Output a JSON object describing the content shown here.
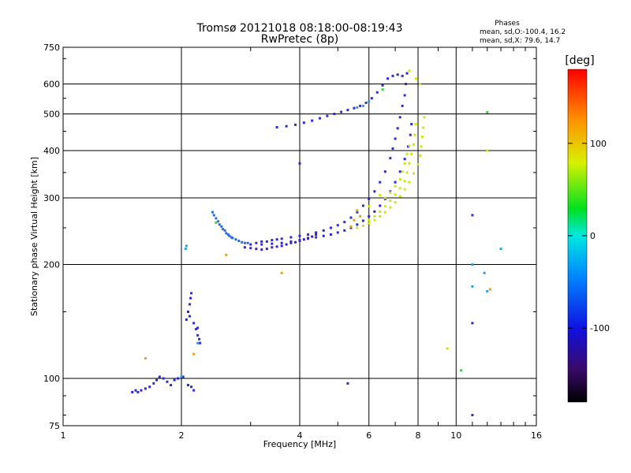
{
  "chart_data": {
    "type": "scatter",
    "title": "Tromsø 20121018 08:18:00-08:19:43",
    "subtitle": "RwPretec (8p)",
    "stats": {
      "heading": "Phases",
      "line_o": "mean, sd,O:-100.4, 16.2",
      "line_x": "mean, sd,X: 79.6, 14.7"
    },
    "xlabel": "Frequency [MHz]",
    "ylabel": "Stationary phase Virtual Height [km]",
    "x_scale": "log",
    "y_scale": "log",
    "xlim": [
      1,
      16
    ],
    "ylim": [
      75,
      750
    ],
    "x_ticks": [
      1,
      2,
      4,
      6,
      8,
      10,
      16
    ],
    "y_ticks": [
      75,
      100,
      200,
      300,
      400,
      500,
      600,
      750
    ],
    "x_grid": [
      2,
      4,
      6,
      8,
      10
    ],
    "y_grid": [
      100,
      200,
      300,
      400,
      500,
      600
    ],
    "grid": true,
    "colorbar": {
      "label": "[deg]",
      "range": [
        -180,
        180
      ],
      "ticks": [
        100,
        0,
        -100
      ]
    },
    "series": [
      {
        "name": "",
        "color": "#2a2ad8",
        "phase": -100,
        "points": [
          [
            1.5,
            92
          ],
          [
            1.53,
            93
          ],
          [
            1.55,
            92
          ],
          [
            1.58,
            93
          ],
          [
            1.62,
            94
          ],
          [
            1.66,
            95
          ],
          [
            1.7,
            97
          ],
          [
            1.73,
            99
          ],
          [
            1.76,
            101
          ],
          [
            1.8,
            100
          ],
          [
            1.84,
            98
          ],
          [
            1.88,
            96
          ],
          [
            1.92,
            99
          ],
          [
            1.96,
            100
          ],
          [
            2.02,
            101
          ],
          [
            2.08,
            96
          ],
          [
            2.12,
            95
          ],
          [
            2.15,
            93
          ],
          [
            2.06,
            143
          ],
          [
            2.08,
            150
          ],
          [
            2.1,
            157
          ],
          [
            2.11,
            163
          ],
          [
            2.12,
            168
          ],
          [
            2.1,
            146
          ],
          [
            2.15,
            140
          ],
          [
            2.18,
            135
          ],
          [
            2.2,
            130
          ],
          [
            2.22,
            127
          ],
          [
            2.23,
            124
          ],
          [
            2.2,
            136
          ],
          [
            3.0,
            226
          ],
          [
            3.1,
            228
          ],
          [
            3.2,
            230
          ],
          [
            3.3,
            230
          ],
          [
            3.4,
            232
          ],
          [
            3.5,
            233
          ],
          [
            3.6,
            234
          ],
          [
            3.8,
            236
          ],
          [
            4.0,
            238
          ],
          [
            4.2,
            240
          ],
          [
            4.4,
            243
          ],
          [
            4.6,
            246
          ],
          [
            4.8,
            250
          ],
          [
            5.0,
            254
          ],
          [
            5.2,
            259
          ],
          [
            5.4,
            266
          ],
          [
            5.6,
            275
          ],
          [
            5.8,
            286
          ],
          [
            6.0,
            298
          ],
          [
            6.2,
            312
          ],
          [
            6.4,
            330
          ],
          [
            6.6,
            352
          ],
          [
            6.8,
            382
          ],
          [
            6.9,
            405
          ],
          [
            7.0,
            430
          ],
          [
            7.1,
            458
          ],
          [
            7.2,
            490
          ],
          [
            7.3,
            525
          ],
          [
            7.4,
            560
          ],
          [
            7.45,
            600
          ],
          [
            7.5,
            640
          ],
          [
            3.2,
            226
          ],
          [
            3.4,
            227
          ],
          [
            3.6,
            228
          ],
          [
            3.8,
            230
          ],
          [
            4.0,
            232
          ],
          [
            4.2,
            234
          ],
          [
            4.4,
            236
          ],
          [
            4.6,
            238
          ],
          [
            4.8,
            240
          ],
          [
            5.0,
            243
          ],
          [
            5.2,
            246
          ],
          [
            5.4,
            250
          ],
          [
            5.6,
            255
          ],
          [
            5.8,
            261
          ],
          [
            6.0,
            268
          ],
          [
            6.2,
            276
          ],
          [
            6.4,
            286
          ],
          [
            6.6,
            298
          ],
          [
            6.8,
            312
          ],
          [
            7.0,
            330
          ],
          [
            7.2,
            352
          ],
          [
            7.4,
            380
          ],
          [
            7.55,
            410
          ],
          [
            7.65,
            440
          ],
          [
            7.7,
            470
          ],
          [
            3.5,
            461
          ],
          [
            3.7,
            464
          ],
          [
            3.9,
            468
          ],
          [
            4.1,
            474
          ],
          [
            4.3,
            480
          ],
          [
            4.5,
            487
          ],
          [
            4.7,
            494
          ],
          [
            4.9,
            500
          ],
          [
            5.1,
            506
          ],
          [
            5.3,
            512
          ],
          [
            5.5,
            518
          ],
          [
            5.7,
            525
          ],
          [
            5.9,
            535
          ],
          [
            6.1,
            550
          ],
          [
            6.3,
            570
          ],
          [
            6.5,
            595
          ],
          [
            6.7,
            620
          ],
          [
            6.9,
            630
          ],
          [
            7.1,
            635
          ],
          [
            7.3,
            630
          ],
          [
            4.0,
            370
          ],
          [
            5.3,
            97
          ],
          [
            11.0,
            140
          ],
          [
            11.0,
            80
          ],
          [
            11.0,
            270
          ]
        ]
      },
      {
        "name": "",
        "color": "#2c6bd6",
        "phase": -110,
        "points": [
          [
            2.4,
            275
          ],
          [
            2.45,
            265
          ],
          [
            2.5,
            255
          ],
          [
            2.55,
            248
          ],
          [
            2.6,
            242
          ],
          [
            2.65,
            238
          ],
          [
            2.7,
            235
          ],
          [
            2.75,
            233
          ],
          [
            2.8,
            231
          ],
          [
            2.85,
            229
          ],
          [
            2.9,
            228
          ],
          [
            2.95,
            228
          ],
          [
            2.42,
            270
          ],
          [
            2.48,
            260
          ],
          [
            2.53,
            252
          ],
          [
            2.58,
            246
          ],
          [
            2.63,
            240
          ],
          [
            2.68,
            236
          ]
        ]
      },
      {
        "name": "",
        "color": "#3a21c8",
        "phase": -120,
        "points": [
          [
            2.9,
            222
          ],
          [
            3.0,
            221
          ],
          [
            3.1,
            220
          ],
          [
            3.2,
            219
          ],
          [
            3.3,
            220
          ],
          [
            3.4,
            222
          ],
          [
            3.5,
            223
          ],
          [
            3.6,
            224
          ],
          [
            3.7,
            226
          ],
          [
            3.8,
            228
          ],
          [
            3.9,
            229
          ],
          [
            4.0,
            231
          ],
          [
            4.1,
            233
          ],
          [
            4.2,
            235
          ],
          [
            4.3,
            237
          ],
          [
            4.4,
            240
          ]
        ]
      },
      {
        "name": "",
        "color": "#2aa0e0",
        "phase": -80,
        "points": [
          [
            2.05,
            220
          ],
          [
            2.06,
            224
          ],
          [
            2.0,
            101
          ],
          [
            2.2,
            124
          ],
          [
            5.6,
            520
          ],
          [
            5.8,
            525
          ],
          [
            6.0,
            540
          ],
          [
            11.0,
            175
          ],
          [
            11.8,
            190
          ],
          [
            12.0,
            170
          ],
          [
            13.0,
            220
          ],
          [
            11.0,
            200
          ]
        ]
      },
      {
        "name": "",
        "color": "#c8e818",
        "phase": 95,
        "points": [
          [
            5.6,
            250
          ],
          [
            5.8,
            253
          ],
          [
            6.0,
            257
          ],
          [
            6.2,
            262
          ],
          [
            6.4,
            268
          ],
          [
            6.6,
            275
          ],
          [
            6.8,
            283
          ],
          [
            7.0,
            292
          ],
          [
            7.2,
            303
          ],
          [
            7.4,
            316
          ],
          [
            7.6,
            330
          ],
          [
            7.8,
            348
          ],
          [
            8.0,
            368
          ],
          [
            8.1,
            388
          ],
          [
            8.15,
            410
          ],
          [
            8.2,
            435
          ],
          [
            8.25,
            460
          ],
          [
            8.3,
            490
          ],
          [
            6.0,
            262
          ],
          [
            6.2,
            268
          ],
          [
            6.4,
            276
          ],
          [
            6.6,
            285
          ],
          [
            6.8,
            295
          ],
          [
            7.0,
            306
          ],
          [
            7.2,
            318
          ],
          [
            7.4,
            332
          ],
          [
            7.5,
            350
          ],
          [
            7.6,
            370
          ],
          [
            7.7,
            392
          ],
          [
            7.8,
            415
          ],
          [
            7.85,
            440
          ],
          [
            7.9,
            470
          ],
          [
            6.6,
            300
          ],
          [
            6.8,
            310
          ],
          [
            7.0,
            322
          ],
          [
            7.2,
            336
          ],
          [
            7.3,
            352
          ],
          [
            7.4,
            370
          ],
          [
            7.5,
            392
          ],
          [
            7.6,
            412
          ],
          [
            6.0,
            285
          ],
          [
            6.4,
            305
          ],
          [
            7.9,
            620
          ],
          [
            8.1,
            600
          ],
          [
            7.6,
            650
          ],
          [
            12.0,
            400
          ],
          [
            9.5,
            120
          ]
        ]
      },
      {
        "name": "",
        "color": "#e8a01a",
        "phase": 140,
        "points": [
          [
            5.4,
            252
          ],
          [
            5.5,
            262
          ],
          [
            5.7,
            268
          ],
          [
            5.6,
            278
          ],
          [
            2.15,
            116
          ],
          [
            1.62,
            113
          ],
          [
            3.6,
            190
          ],
          [
            2.6,
            212
          ],
          [
            12.2,
            172
          ]
        ]
      },
      {
        "name": "",
        "color": "#34d43c",
        "phase": 20,
        "points": [
          [
            2.45,
            258
          ],
          [
            6.5,
            580
          ],
          [
            12.0,
            505
          ],
          [
            10.3,
            105
          ]
        ]
      }
    ]
  }
}
